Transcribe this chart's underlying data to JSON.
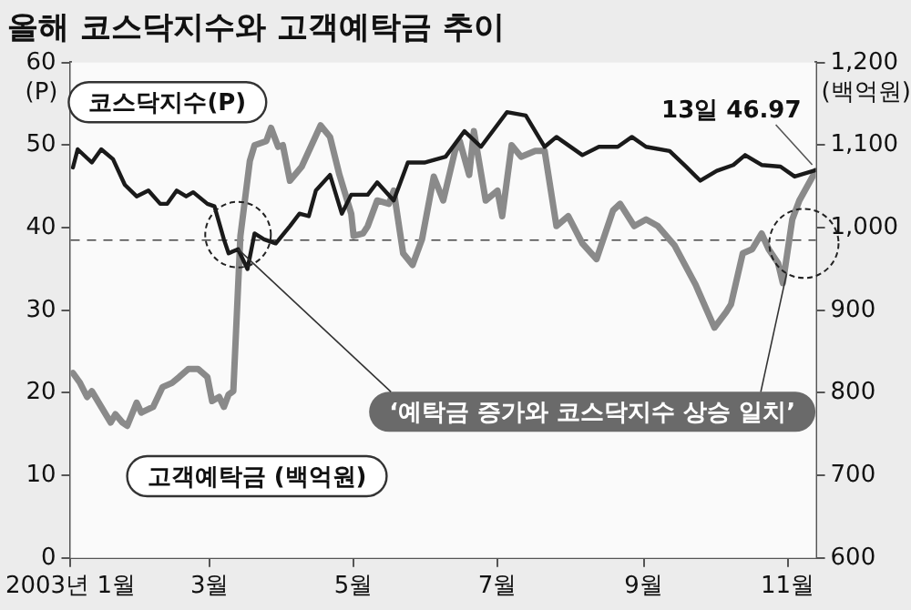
{
  "chart_data": {
    "type": "line",
    "title": "올해 코스닥지수와 고객예탁금 추이",
    "ylabel": "(P)",
    "y2label": "(백억원)",
    "series": [
      {
        "name": "코스닥지수(P)",
        "color": "#1a1a1a",
        "axis": "y",
        "x": [
          "2003-01-02",
          "2003-01-04",
          "2003-01-10",
          "2003-01-14",
          "2003-01-19",
          "2003-01-24",
          "2003-01-29",
          "2003-02-03",
          "2003-02-08",
          "2003-02-11",
          "2003-02-15",
          "2003-02-19",
          "2003-02-22",
          "2003-02-28",
          "2003-03-03",
          "2003-03-07",
          "2003-03-09",
          "2003-03-13",
          "2003-03-17",
          "2003-03-20",
          "2003-03-24",
          "2003-03-29",
          "2003-04-04",
          "2003-04-08",
          "2003-04-12",
          "2003-04-15",
          "2003-04-21",
          "2003-04-26",
          "2003-04-30",
          "2003-05-07",
          "2003-05-11",
          "2003-05-18",
          "2003-05-24",
          "2003-05-31",
          "2003-06-09",
          "2003-06-17",
          "2003-06-24",
          "2003-07-05",
          "2003-07-13",
          "2003-07-21",
          "2003-07-26",
          "2003-08-06",
          "2003-08-13",
          "2003-08-21",
          "2003-08-27",
          "2003-09-02",
          "2003-09-12",
          "2003-09-19",
          "2003-09-25",
          "2003-10-02",
          "2003-10-09",
          "2003-10-14",
          "2003-10-21",
          "2003-10-29",
          "2003-11-04",
          "2003-11-13"
        ],
        "values": [
          47.3,
          49.5,
          47.9,
          49.5,
          48.3,
          45.2,
          43.8,
          44.5,
          42.9,
          42.9,
          44.5,
          43.8,
          44.3,
          42.9,
          42.6,
          38.6,
          36.9,
          37.4,
          35.0,
          39.3,
          38.6,
          38.1,
          40.2,
          41.7,
          41.4,
          44.5,
          46.4,
          41.7,
          44.0,
          44.0,
          45.5,
          43.3,
          47.9,
          47.9,
          48.6,
          51.7,
          49.8,
          54.0,
          53.6,
          49.8,
          51.0,
          48.8,
          49.8,
          49.8,
          51.0,
          49.8,
          49.3,
          47.4,
          45.7,
          46.9,
          47.6,
          48.8,
          47.6,
          47.4,
          46.2,
          46.97
        ]
      },
      {
        "name": "고객예탁금 (백억원)",
        "color": "#8a8a8a",
        "axis": "y2",
        "x": [
          "2003-01-02",
          "2003-01-05",
          "2003-01-08",
          "2003-01-10",
          "2003-01-14",
          "2003-01-18",
          "2003-01-20",
          "2003-01-23",
          "2003-01-25",
          "2003-01-29",
          "2003-01-31",
          "2003-02-05",
          "2003-02-09",
          "2003-02-13",
          "2003-02-16",
          "2003-02-20",
          "2003-02-24",
          "2003-02-28",
          "2003-03-02",
          "2003-03-05",
          "2003-03-07",
          "2003-03-09",
          "2003-03-11",
          "2003-03-14",
          "2003-03-18",
          "2003-03-20",
          "2003-03-25",
          "2003-03-27",
          "2003-03-30",
          "2003-04-01",
          "2003-04-04",
          "2003-04-09",
          "2003-04-17",
          "2003-04-21",
          "2003-04-25",
          "2003-04-30",
          "2003-05-01",
          "2003-05-05",
          "2003-05-07",
          "2003-05-11",
          "2003-05-16",
          "2003-05-18",
          "2003-05-22",
          "2003-05-26",
          "2003-05-30",
          "2003-06-04",
          "2003-06-08",
          "2003-06-13",
          "2003-06-15",
          "2003-06-19",
          "2003-06-21",
          "2003-06-26",
          "2003-07-01",
          "2003-07-03",
          "2003-07-07",
          "2003-07-11",
          "2003-07-17",
          "2003-07-21",
          "2003-07-26",
          "2003-07-31",
          "2003-08-06",
          "2003-08-12",
          "2003-08-19",
          "2003-08-22",
          "2003-08-28",
          "2003-09-02",
          "2003-09-07",
          "2003-09-14",
          "2003-09-23",
          "2003-10-01",
          "2003-10-06",
          "2003-10-08",
          "2003-10-13",
          "2003-10-17",
          "2003-10-21",
          "2003-10-24",
          "2003-10-28",
          "2003-10-30",
          "2003-11-03",
          "2003-11-06",
          "2003-11-13"
        ],
        "values": [
          824,
          812,
          795,
          802,
          783,
          764,
          774,
          764,
          760,
          788,
          776,
          783,
          807,
          812,
          819,
          829,
          829,
          819,
          790,
          795,
          783,
          798,
          802,
          990,
          1081,
          1100,
          1105,
          1121,
          1098,
          1100,
          1057,
          1074,
          1124,
          1110,
          1064,
          1017,
          990,
          993,
          1002,
          1033,
          1029,
          1045,
          969,
          955,
          986,
          1062,
          1033,
          1093,
          1105,
          1064,
          1117,
          1033,
          1045,
          1014,
          1100,
          1086,
          1093,
          1093,
          1002,
          1014,
          981,
          962,
          1021,
          1029,
          1002,
          1010,
          1002,
          979,
          931,
          879,
          898,
          907,
          969,
          974,
          993,
          974,
          957,
          933,
          1010,
          1033,
          1069
        ]
      }
    ],
    "xlim": [
      "2003-01-01",
      "2003-11-13"
    ],
    "xticks": [
      {
        "value": "2003-01-01",
        "label": "2003년 1월"
      },
      {
        "value": "2003-03-01",
        "label": "3월"
      },
      {
        "value": "2003-05-01",
        "label": "5월"
      },
      {
        "value": "2003-07-01",
        "label": "7월"
      },
      {
        "value": "2003-09-01",
        "label": "9월"
      },
      {
        "value": "2003-11-01",
        "label": "11월"
      }
    ],
    "ylim": [
      0,
      60
    ],
    "yticks": [
      0,
      10,
      20,
      30,
      40,
      50,
      60
    ],
    "y2lim": [
      600,
      1200
    ],
    "y2ticks": [
      600,
      700,
      800,
      900,
      {
        "value": 1000,
        "label": "1,000"
      },
      {
        "value": 1100,
        "label": "1,100"
      },
      {
        "value": 1200,
        "label": "1,200"
      }
    ],
    "ref_lines": [
      {
        "axis": "y",
        "value": 38.5,
        "color": "#444444",
        "line_style": "dashed"
      }
    ],
    "annotations": [
      {
        "text": "13일 46.97",
        "x": "2003-11-13",
        "y": 46.97
      },
      {
        "text": "‘예탁금 증가와 코스닥지수 상승 일치’",
        "x": "2003-03-13",
        "y": 37.4
      }
    ],
    "grid": false,
    "legend": false,
    "marker": "none",
    "line_style": "solid"
  }
}
